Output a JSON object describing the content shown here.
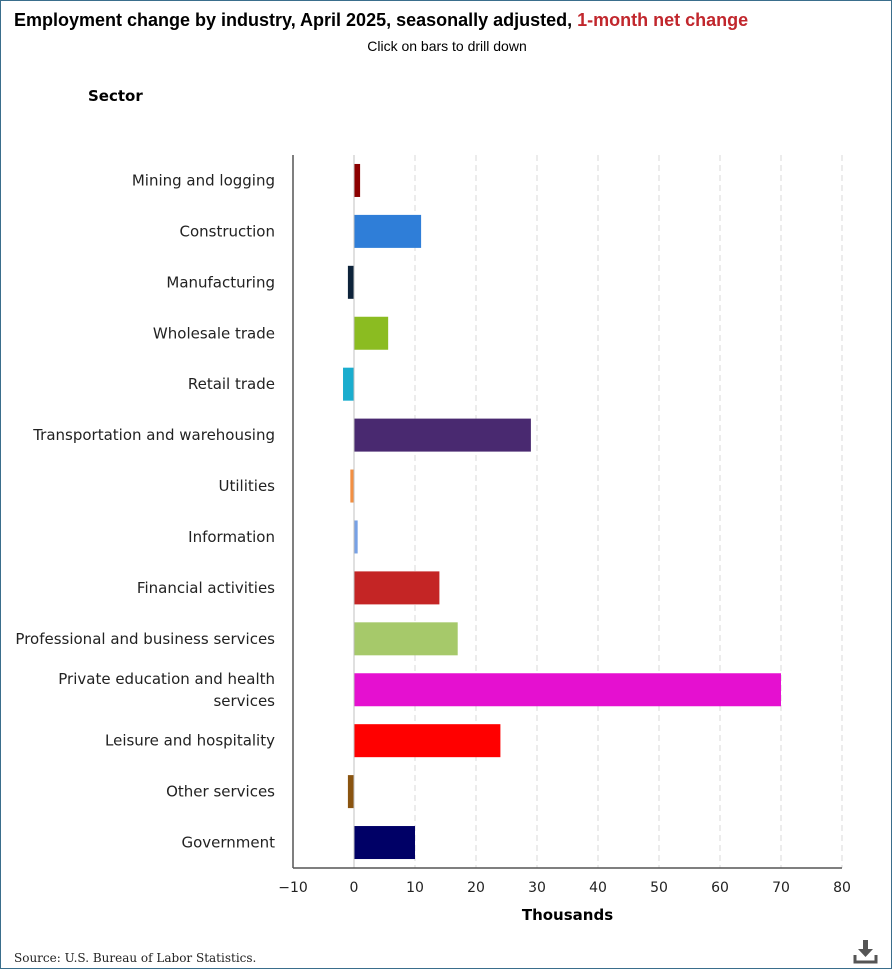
{
  "title": {
    "main": "Employment change by industry, April 2025, seasonally adjusted, ",
    "accent": "1-month net change"
  },
  "subtitle": "Click on bars to drill down",
  "axis_header": "Sector",
  "source": "Source: U.S. Bureau of Labor Statistics.",
  "download": {
    "icon": "download-icon"
  },
  "chart_data": {
    "type": "bar",
    "orientation": "horizontal",
    "xlabel": "Thousands",
    "ylabel": "Sector",
    "xlim": [
      -10,
      80
    ],
    "xticks": [
      -10,
      0,
      10,
      20,
      30,
      40,
      50,
      60,
      70,
      80
    ],
    "grid": true,
    "categories": [
      [
        "Mining and logging"
      ],
      [
        "Construction"
      ],
      [
        "Manufacturing"
      ],
      [
        "Wholesale trade"
      ],
      [
        "Retail trade"
      ],
      [
        "Transportation and warehousing"
      ],
      [
        "Utilities"
      ],
      [
        "Information"
      ],
      [
        "Financial activities"
      ],
      [
        "Professional and business services"
      ],
      [
        "Private education and health",
        "services"
      ],
      [
        "Leisure and hospitality"
      ],
      [
        "Other services"
      ],
      [
        "Government"
      ]
    ],
    "values": [
      1,
      11,
      -1,
      5.6,
      -1.8,
      29,
      -0.6,
      0.6,
      14,
      17,
      70,
      24,
      -1,
      10
    ],
    "colors": [
      "#8b0000",
      "#2f7ed8",
      "#0d233a",
      "#8bbc21",
      "#1aadce",
      "#492970",
      "#f28f43",
      "#77a1e5",
      "#c42525",
      "#a6c96a",
      "#e510d0",
      "#ff0000",
      "#8a5410",
      "#000066"
    ]
  }
}
